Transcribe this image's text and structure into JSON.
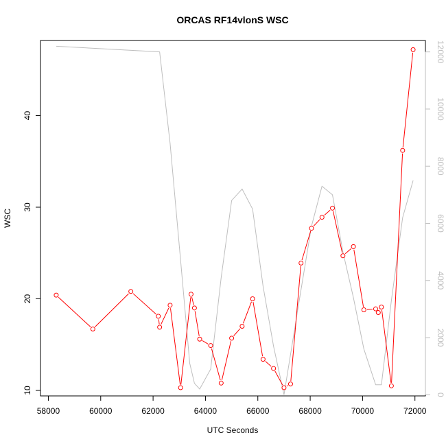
{
  "chart_data": {
    "type": "line",
    "title": "ORCAS RF14vlonS WSC",
    "xlabel": "UTC Seconds",
    "ylabel": "WSC",
    "xlim": [
      57700,
      72400
    ],
    "ylim": [
      9.4,
      48.2
    ],
    "y2lim": [
      -40,
      12400
    ],
    "x_ticks": [
      58000,
      60000,
      62000,
      64000,
      66000,
      68000,
      70000,
      72000
    ],
    "y_ticks": [
      10,
      20,
      30,
      40
    ],
    "y2_ticks": [
      0,
      2000,
      4000,
      6000,
      8000,
      10000,
      12000
    ],
    "grid": false,
    "colors": {
      "primary": "#ff0000",
      "secondary": "#bebebe",
      "axis": "#000000"
    },
    "series": [
      {
        "axis": "left",
        "marker": "circle",
        "x": [
          58300,
          59700,
          61150,
          62200,
          62250,
          62650,
          63050,
          63450,
          63580,
          63780,
          64200,
          64600,
          65000,
          65400,
          65800,
          66200,
          66600,
          67000,
          67250,
          67650,
          68050,
          68450,
          68850,
          69250,
          69650,
          70050,
          70500,
          70600,
          70720,
          71100,
          71530,
          71930
        ],
        "y": [
          20.4,
          16.7,
          20.8,
          18.1,
          16.9,
          19.3,
          10.3,
          20.5,
          19.0,
          15.6,
          14.9,
          10.8,
          15.7,
          17.0,
          20.0,
          13.4,
          12.4,
          10.3,
          10.7,
          23.9,
          27.7,
          28.9,
          29.9,
          24.7,
          25.7,
          18.8,
          18.9,
          18.5,
          19.1,
          10.5,
          36.2,
          47.2
        ]
      },
      {
        "axis": "right",
        "marker": "none",
        "x": [
          58300,
          62250,
          62650,
          63100,
          63400,
          63580,
          63780,
          64200,
          64600,
          65000,
          65400,
          65800,
          66200,
          66600,
          67000,
          67600,
          68050,
          68450,
          68850,
          69250,
          69650,
          70050,
          70500,
          70720,
          71100,
          71530,
          71930
        ],
        "y": [
          12200,
          12000,
          8800,
          4200,
          1100,
          400,
          200,
          900,
          4100,
          6800,
          7200,
          6500,
          3800,
          1700,
          0,
          3400,
          5900,
          7300,
          7000,
          5000,
          3400,
          1600,
          350,
          350,
          3300,
          6200,
          7500
        ]
      }
    ]
  }
}
